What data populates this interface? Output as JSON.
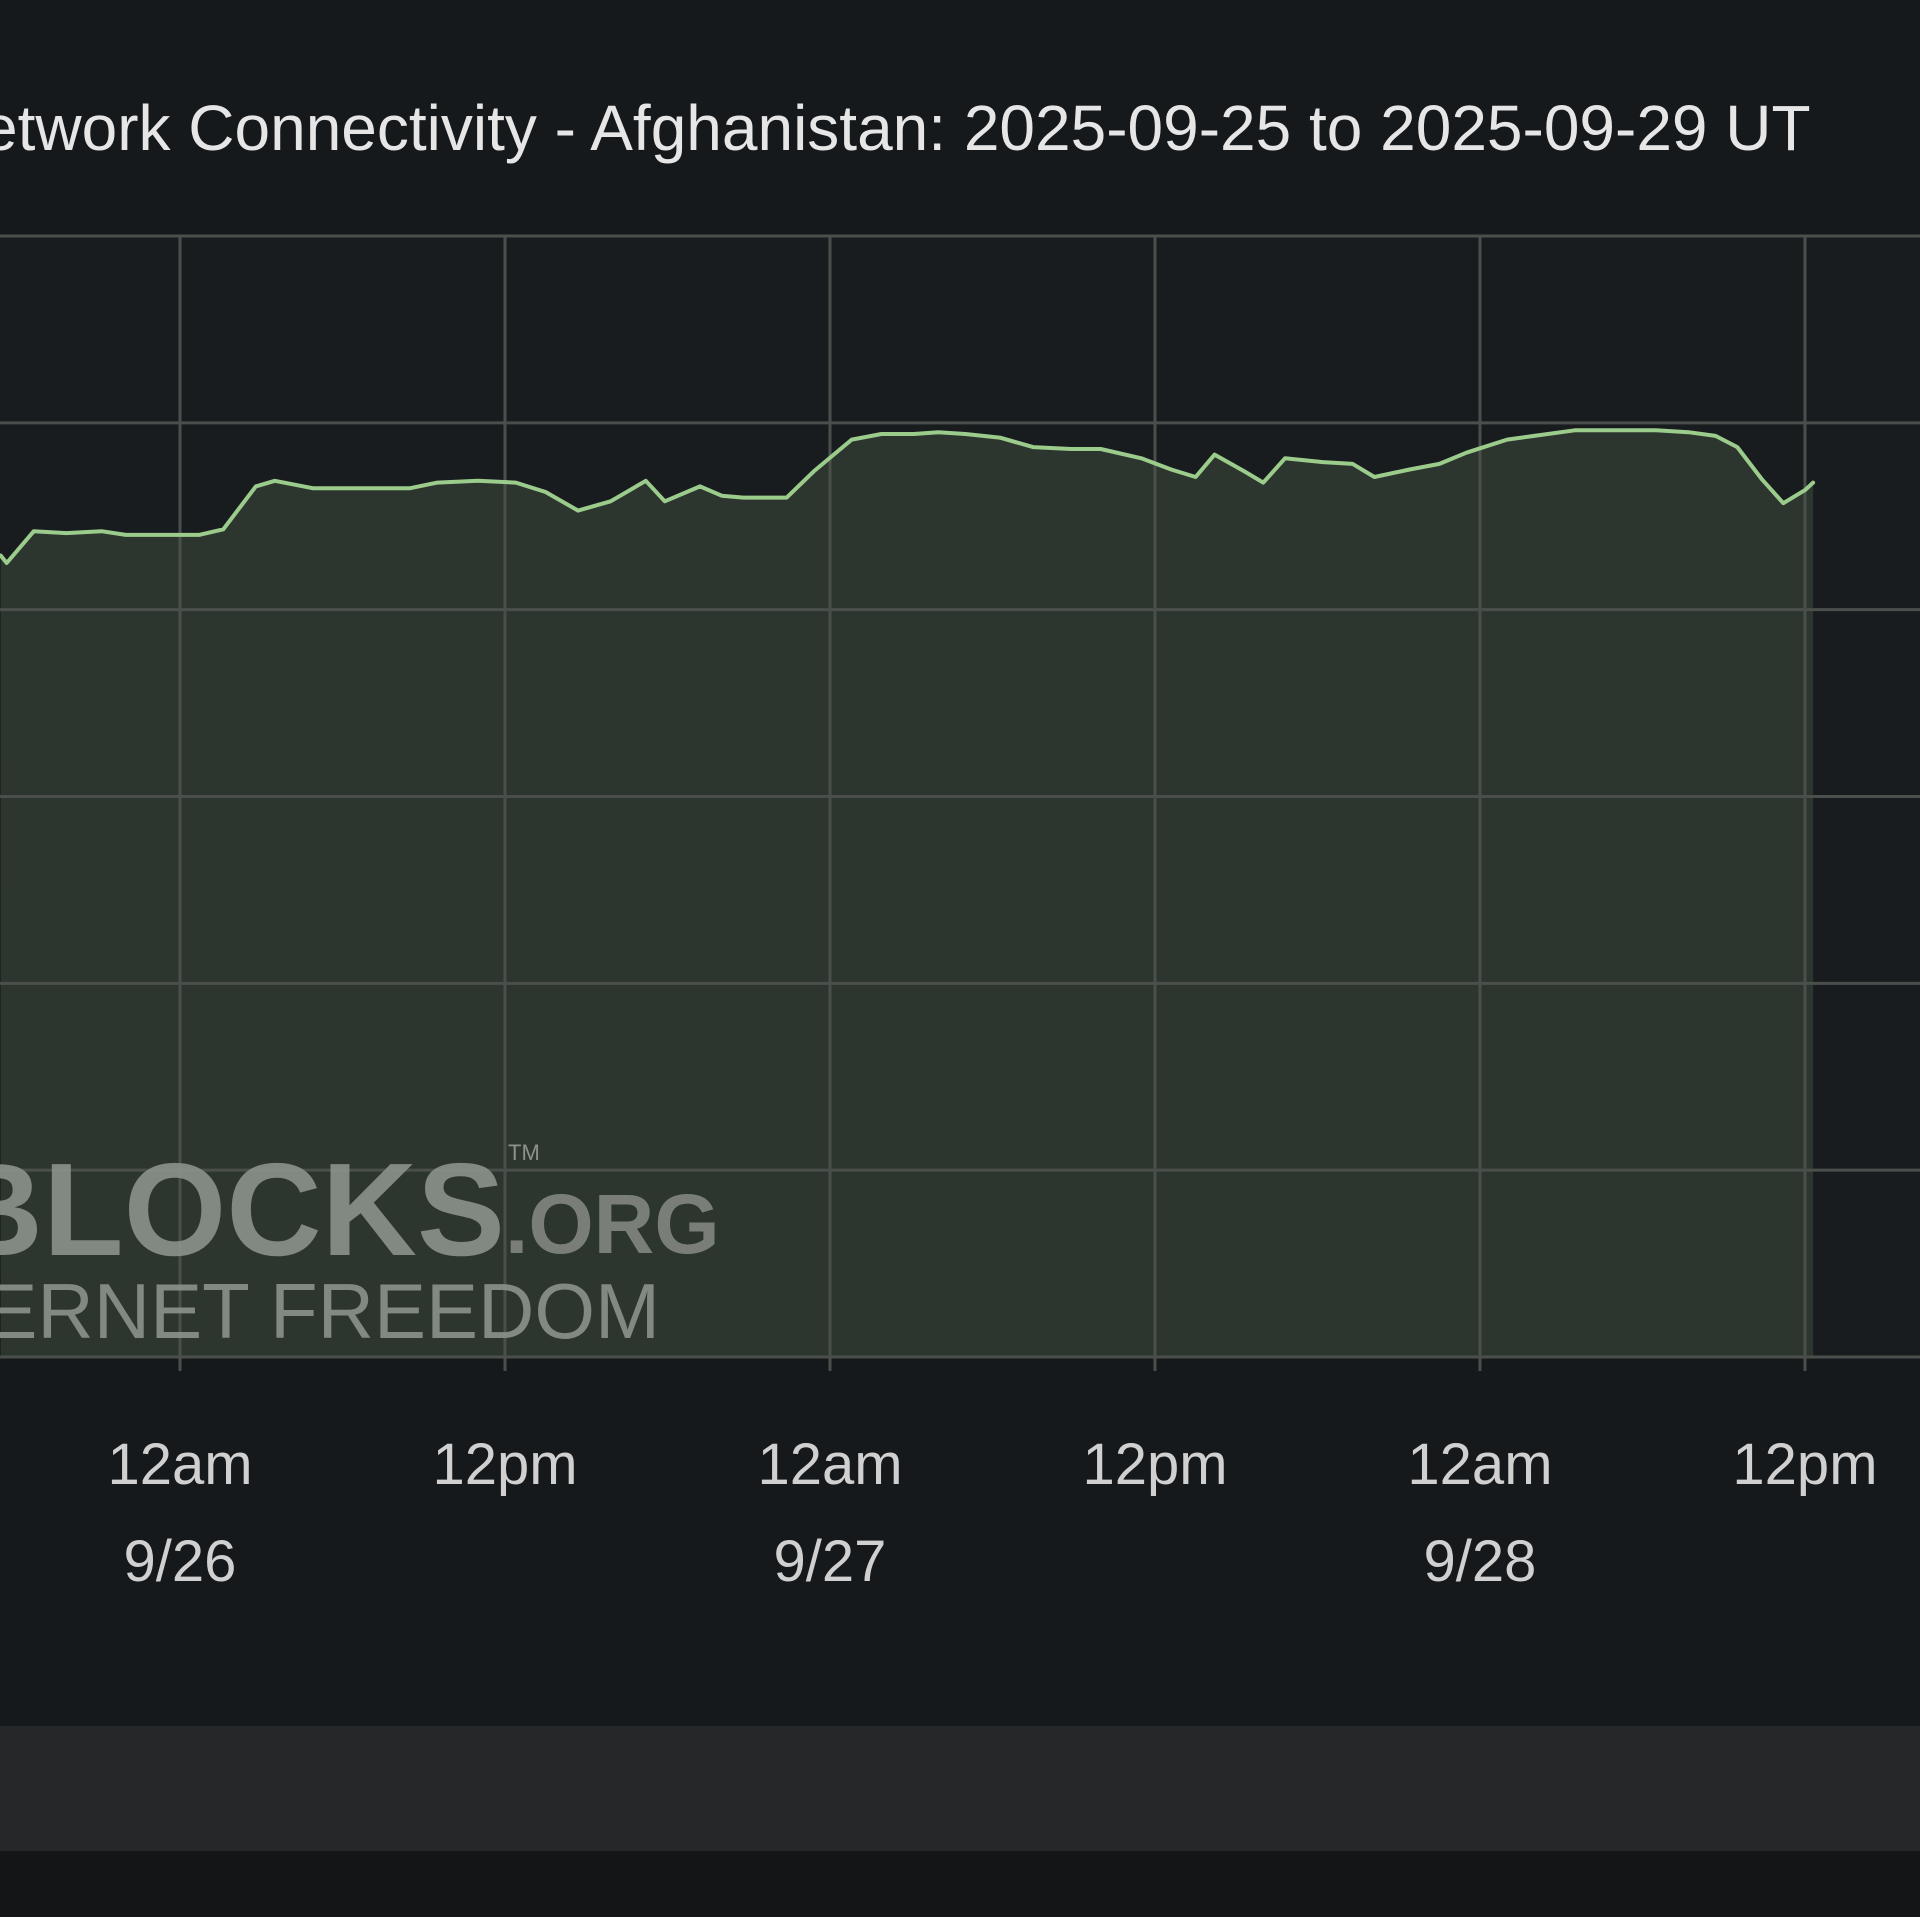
{
  "chart_data": {
    "type": "area",
    "title": "etwork Connectivity - Afghanistan: 2025-09-25 to 2025-09-29 UT",
    "x_unit": "hours",
    "x_ticks": [
      {
        "t": 24,
        "line1": "12am",
        "line2": "9/26"
      },
      {
        "t": 36,
        "line1": "12pm",
        "line2": ""
      },
      {
        "t": 48,
        "line1": "12am",
        "line2": "9/27"
      },
      {
        "t": 60,
        "line1": "12pm",
        "line2": ""
      },
      {
        "t": 72,
        "line1": "12am",
        "line2": "9/28"
      },
      {
        "t": 84,
        "line1": "12pm",
        "line2": ""
      }
    ],
    "ylim": [
      0,
      6
    ],
    "y_grid": [
      0,
      1,
      2,
      3,
      4,
      5,
      6
    ],
    "grid": true,
    "series": [
      {
        "color": "#9ccc8c",
        "points": [
          [
            17.38,
            4.29
          ],
          [
            17.6,
            4.25
          ],
          [
            18.6,
            4.42
          ],
          [
            19.8,
            4.41
          ],
          [
            21.1,
            4.42
          ],
          [
            22.0,
            4.4
          ],
          [
            23.5,
            4.4
          ],
          [
            24.7,
            4.4
          ],
          [
            25.6,
            4.43
          ],
          [
            26.8,
            4.66
          ],
          [
            27.5,
            4.69
          ],
          [
            28.9,
            4.65
          ],
          [
            30.0,
            4.65
          ],
          [
            31.0,
            4.65
          ],
          [
            32.5,
            4.65
          ],
          [
            33.5,
            4.68
          ],
          [
            35.0,
            4.69
          ],
          [
            36.4,
            4.68
          ],
          [
            37.5,
            4.63
          ],
          [
            38.7,
            4.53
          ],
          [
            39.9,
            4.58
          ],
          [
            41.2,
            4.69
          ],
          [
            41.9,
            4.58
          ],
          [
            43.2,
            4.66
          ],
          [
            44.0,
            4.61
          ],
          [
            44.8,
            4.6
          ],
          [
            45.5,
            4.6
          ],
          [
            46.4,
            4.6
          ],
          [
            47.4,
            4.74
          ],
          [
            48.8,
            4.91
          ],
          [
            49.9,
            4.94
          ],
          [
            51.1,
            4.94
          ],
          [
            52.0,
            4.95
          ],
          [
            53.0,
            4.94
          ],
          [
            54.3,
            4.92
          ],
          [
            55.5,
            4.87
          ],
          [
            56.9,
            4.86
          ],
          [
            58.0,
            4.86
          ],
          [
            59.5,
            4.81
          ],
          [
            60.6,
            4.75
          ],
          [
            61.5,
            4.71
          ],
          [
            62.2,
            4.83
          ],
          [
            63.3,
            4.74
          ],
          [
            64.0,
            4.68
          ],
          [
            64.8,
            4.81
          ],
          [
            66.2,
            4.79
          ],
          [
            67.3,
            4.78
          ],
          [
            68.1,
            4.71
          ],
          [
            69.4,
            4.75
          ],
          [
            70.5,
            4.78
          ],
          [
            71.5,
            4.84
          ],
          [
            73.0,
            4.91
          ],
          [
            74.0,
            4.93
          ],
          [
            75.5,
            4.96
          ],
          [
            77.0,
            4.96
          ],
          [
            78.5,
            4.96
          ],
          [
            79.7,
            4.95
          ],
          [
            80.7,
            4.93
          ],
          [
            81.5,
            4.87
          ],
          [
            82.4,
            4.7
          ],
          [
            83.2,
            4.57
          ],
          [
            84.0,
            4.64
          ],
          [
            84.3,
            4.68
          ]
        ]
      }
    ]
  },
  "watermark": {
    "brand_main": "NETBLOCKS",
    "brand_suffix": ".ORG",
    "trademark": "TM",
    "tagline": "MAPPING INTERNET FREEDOM"
  }
}
